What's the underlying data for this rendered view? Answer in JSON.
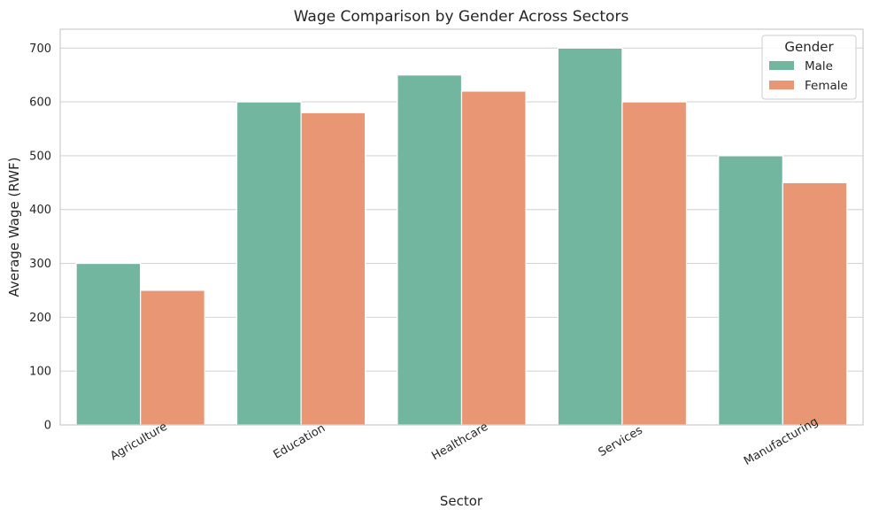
{
  "chart_data": {
    "type": "bar",
    "title": "Wage Comparison by Gender Across Sectors",
    "xlabel": "Sector",
    "ylabel": "Average Wage (RWF)",
    "categories": [
      "Agriculture",
      "Education",
      "Healthcare",
      "Services",
      "Manufacturing"
    ],
    "series": [
      {
        "name": "Male",
        "values": [
          300,
          600,
          650,
          700,
          500
        ],
        "color": "#73b6a0"
      },
      {
        "name": "Female",
        "values": [
          250,
          580,
          620,
          600,
          450
        ],
        "color": "#e89674"
      }
    ],
    "ylim": [
      0,
      735
    ],
    "yticks": [
      0,
      100,
      200,
      300,
      400,
      500,
      600,
      700
    ],
    "grid": true,
    "legend": {
      "title": "Gender",
      "placement": "top-right"
    }
  }
}
